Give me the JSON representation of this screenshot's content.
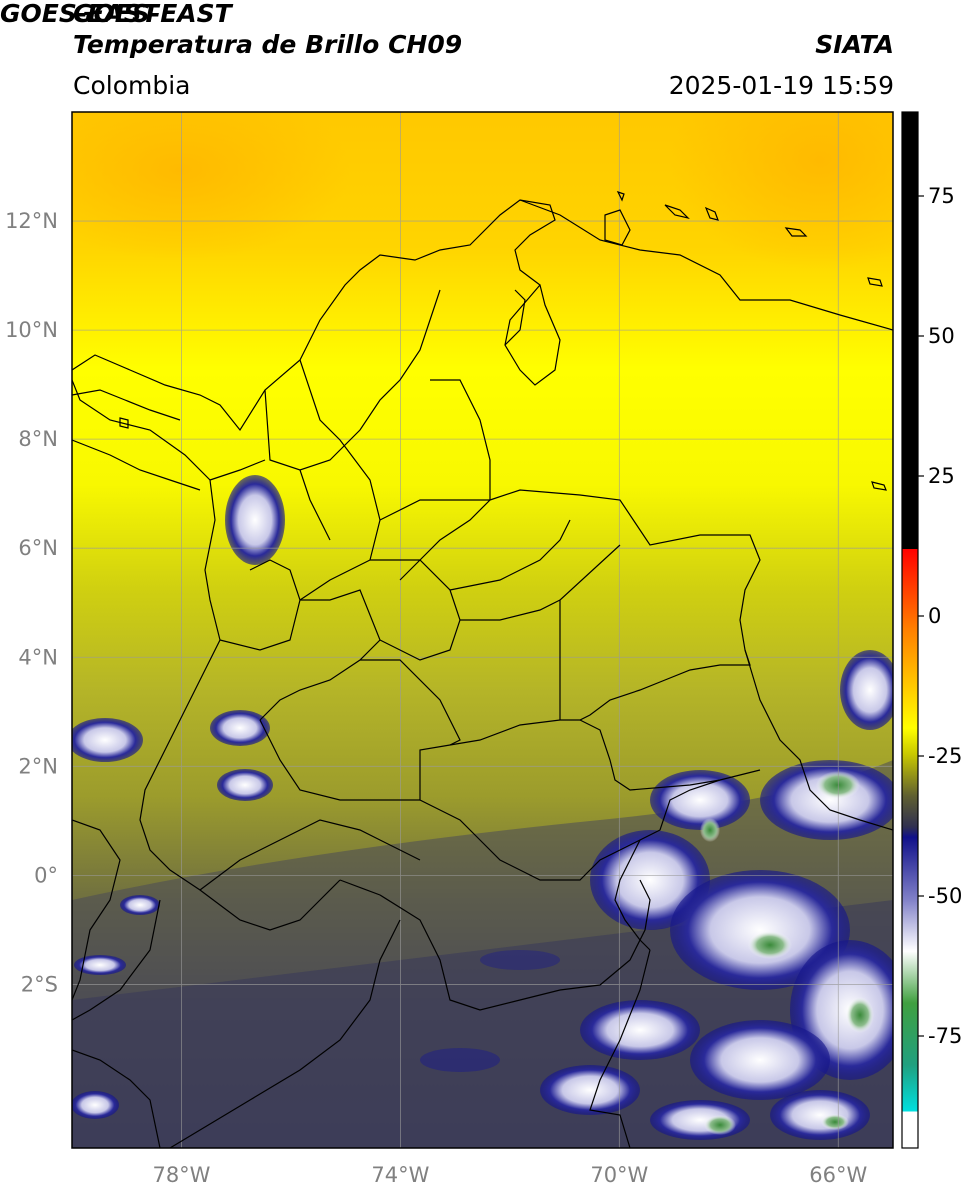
{
  "header": {
    "title_line1": "GOES-EAST",
    "title_line2": "Temperatura de Brillo CH09",
    "organization": "SIATA",
    "region": "Colombia",
    "datetime": "2025-01-19 15:59"
  },
  "map": {
    "lon_range": [
      -80,
      -65
    ],
    "lat_range": [
      -5,
      14
    ],
    "lat_ticks": [
      {
        "value": 12,
        "label": "12°N"
      },
      {
        "value": 10,
        "label": "10°N"
      },
      {
        "value": 8,
        "label": "8°N"
      },
      {
        "value": 6,
        "label": "6°N"
      },
      {
        "value": 4,
        "label": "4°N"
      },
      {
        "value": 2,
        "label": "2°N"
      },
      {
        "value": 0,
        "label": "0°"
      },
      {
        "value": -2,
        "label": "2°S"
      }
    ],
    "lon_ticks": [
      {
        "value": -78,
        "label": "78°W"
      },
      {
        "value": -74,
        "label": "74°W"
      },
      {
        "value": -70,
        "label": "70°W"
      },
      {
        "value": -66,
        "label": "66°W"
      }
    ],
    "grid": true,
    "colors": {
      "warm_orange": "#ffc000",
      "yellow": "#ffff00",
      "olive": "#a8a820",
      "dark_gray": "#3a3a4a",
      "navy": "#10108a",
      "white": "#ffffff",
      "green": "#3a8a3a"
    }
  },
  "colorbar": {
    "range": [
      -95,
      90
    ],
    "ticks": [
      {
        "value": 75,
        "label": "75"
      },
      {
        "value": 50,
        "label": "50"
      },
      {
        "value": 25,
        "label": "25"
      },
      {
        "value": 0,
        "label": "0"
      },
      {
        "value": -25,
        "label": "-25"
      },
      {
        "value": -50,
        "label": "-50"
      },
      {
        "value": -75,
        "label": "-75"
      }
    ]
  }
}
